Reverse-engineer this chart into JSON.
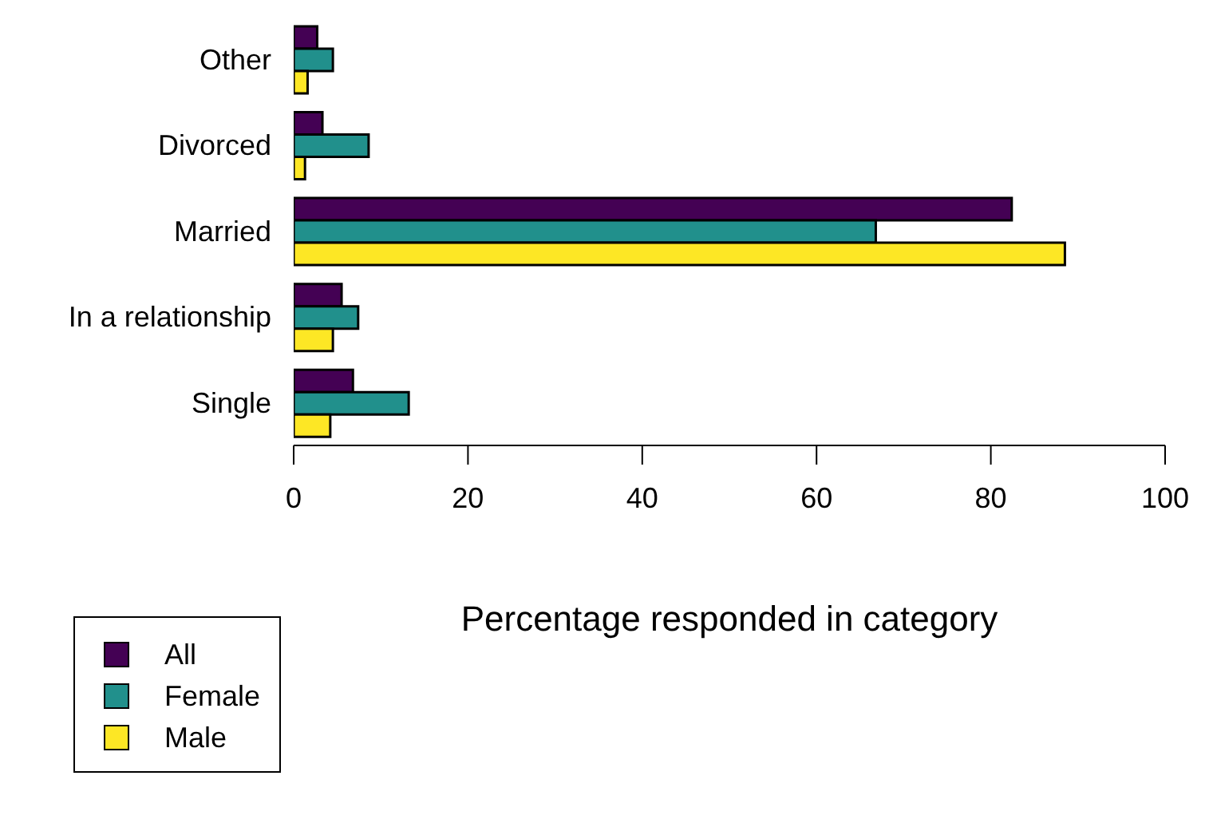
{
  "chart_data": {
    "type": "bar",
    "orientation": "horizontal",
    "xlabel": "Percentage responded in category",
    "categories": [
      "Other",
      "Divorced",
      "Married",
      "In a relationship",
      "Single"
    ],
    "series": [
      {
        "name": "All",
        "color": "#440154",
        "values": [
          2.7,
          3.3,
          82.4,
          5.5,
          6.8
        ]
      },
      {
        "name": "Female",
        "color": "#21908c",
        "values": [
          4.5,
          8.6,
          66.8,
          7.4,
          13.2
        ]
      },
      {
        "name": "Male",
        "color": "#fde725",
        "values": [
          1.6,
          1.3,
          88.5,
          4.5,
          4.2
        ]
      }
    ],
    "xlim": [
      0,
      100
    ],
    "xticks": [
      0,
      20,
      40,
      60,
      80,
      100
    ],
    "grid": false,
    "legend": "bottom left"
  }
}
